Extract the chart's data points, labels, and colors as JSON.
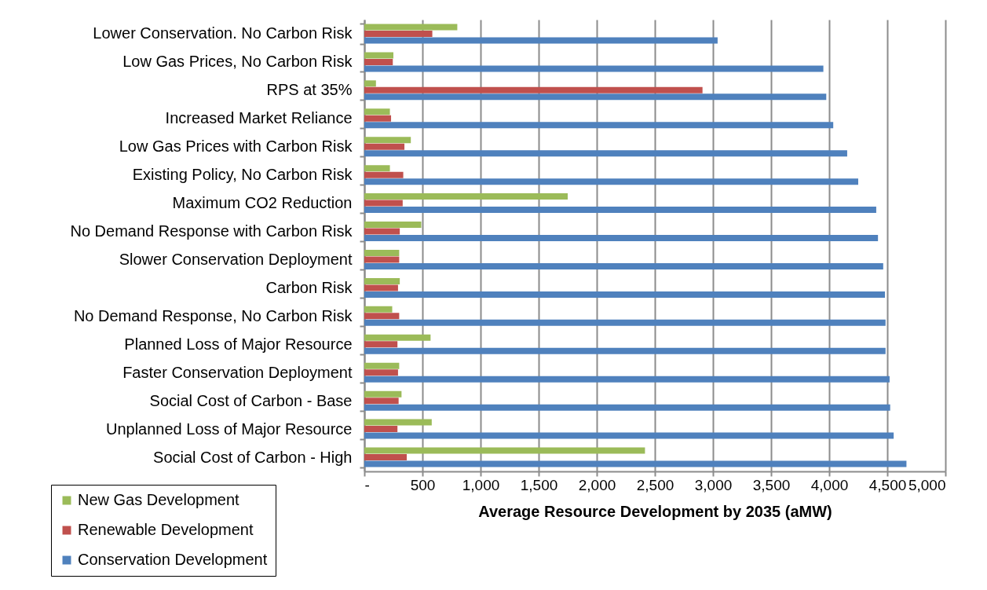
{
  "chart_data": {
    "type": "bar",
    "orientation": "horizontal",
    "xlabel": "Average Resource Development by 2035 (aMW)",
    "categories": [
      "Lower Conservation. No Carbon Risk",
      "Low Gas Prices, No Carbon Risk",
      "RPS at 35%",
      "Increased Market Reliance",
      "Low Gas Prices with Carbon Risk",
      "Existing Policy, No Carbon Risk",
      "Maximum CO2 Reduction",
      "No Demand Response with Carbon Risk",
      "Slower Conservation Deployment ",
      "Carbon Risk",
      "No Demand Response, No Carbon Risk",
      "Planned Loss of Major Resource",
      "Faster Conservation Deployment ",
      "Social Cost of Carbon - Base",
      "Unplanned Loss of Major Resource",
      "Social Cost of Carbon - High"
    ],
    "series": [
      {
        "name": "New Gas Development",
        "color": "#9bbb59",
        "values": [
          800,
          250,
          100,
          220,
          400,
          220,
          1750,
          490,
          300,
          305,
          240,
          570,
          300,
          320,
          580,
          2415
        ]
      },
      {
        "name": "Renewable Development",
        "color": "#c0504d",
        "values": [
          585,
          245,
          2910,
          230,
          345,
          335,
          330,
          305,
          300,
          290,
          300,
          285,
          290,
          295,
          285,
          365
        ]
      },
      {
        "name": "Conservation Development",
        "color": "#4f81bd",
        "values": [
          3040,
          3950,
          3975,
          4035,
          4155,
          4250,
          4405,
          4420,
          4465,
          4480,
          4485,
          4485,
          4520,
          4525,
          4555,
          4665
        ]
      }
    ],
    "xlim": [
      0,
      5000
    ],
    "xticks": [
      {
        "value": 0,
        "label": "-"
      },
      500,
      {
        "value": 1000,
        "label": "1,000"
      },
      {
        "value": 1500,
        "label": "1,500"
      },
      {
        "value": 2000,
        "label": "2,000"
      },
      {
        "value": 2500,
        "label": "2,500"
      },
      {
        "value": 3000,
        "label": "3,000"
      },
      {
        "value": 3500,
        "label": "3,500"
      },
      {
        "value": 4000,
        "label": "4,000"
      },
      {
        "value": 4500,
        "label": "4,500"
      },
      {
        "value": 5000,
        "label": "5,000"
      }
    ],
    "grid": "x",
    "legend": "bottom left"
  }
}
